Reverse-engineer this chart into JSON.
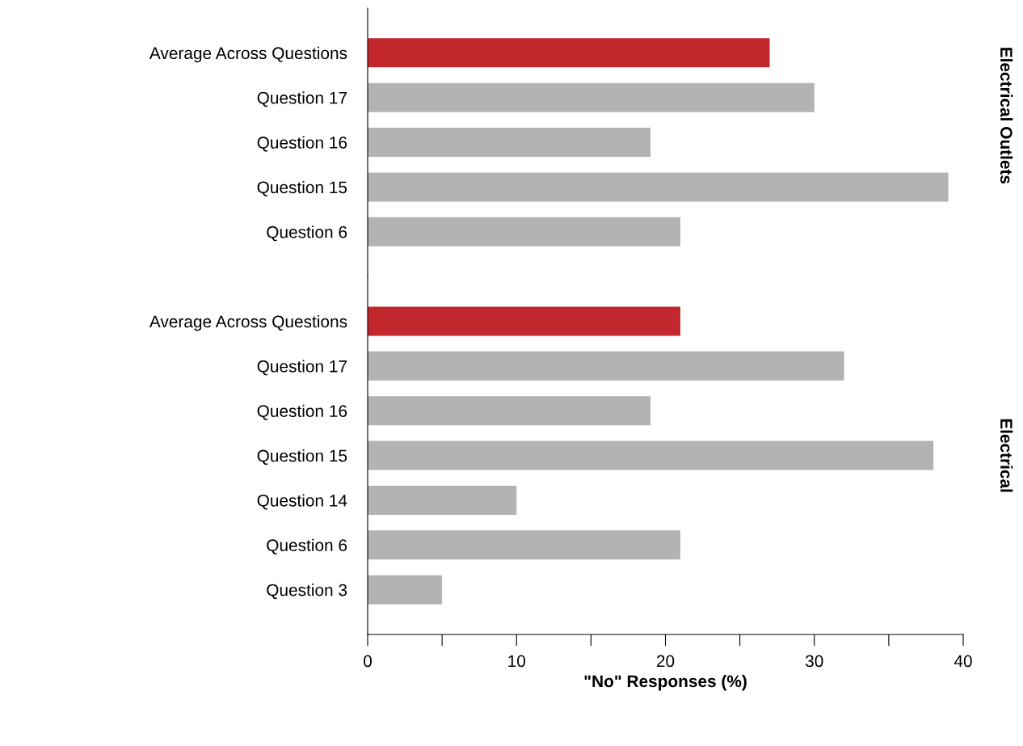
{
  "chart_data": [
    {
      "type": "bar",
      "orientation": "horizontal",
      "y2label": "Electrical Outlets",
      "categories": [
        "Average Across Questions",
        "Question 17",
        "Question 16",
        "Question 15",
        "Question 6"
      ],
      "values": [
        27,
        30,
        19,
        39,
        21
      ],
      "colors": [
        "#c1272d",
        "#b3b3b3",
        "#b3b3b3",
        "#b3b3b3",
        "#b3b3b3"
      ],
      "xlim": [
        0,
        40
      ],
      "tick_labels": "y",
      "grid": false,
      "legend": false
    },
    {
      "type": "bar",
      "orientation": "horizontal",
      "y2label": "Electrical",
      "xlabel": "\"No\" Responses (%)",
      "categories": [
        "Average Across Questions",
        "Question 17",
        "Question 16",
        "Question 15",
        "Question 14",
        "Question 6",
        "Question 3"
      ],
      "values": [
        21,
        32,
        19,
        38,
        10,
        21,
        5
      ],
      "colors": [
        "#c1272d",
        "#b3b3b3",
        "#b3b3b3",
        "#b3b3b3",
        "#b3b3b3",
        "#b3b3b3",
        "#b3b3b3"
      ],
      "xlim": [
        0,
        40
      ],
      "xticks": [
        0,
        {
          "value": 5,
          "label": null
        },
        10,
        {
          "value": 15,
          "label": null
        },
        20,
        {
          "value": 25,
          "label": null
        },
        30,
        {
          "value": 35,
          "label": null
        },
        40
      ],
      "grid": false,
      "legend": false
    }
  ]
}
